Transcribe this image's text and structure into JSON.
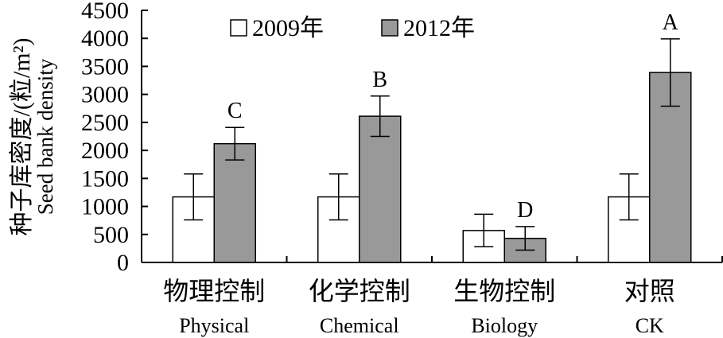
{
  "chart_data": {
    "type": "bar",
    "ylabel_cn": "种子库密度/(粒/m²)",
    "ylabel_en": "Seed bank density",
    "ylim": [
      0,
      4500
    ],
    "yticks": [
      "0",
      "500",
      "1000",
      "1500",
      "2000",
      "2500",
      "3000",
      "3500",
      "4000",
      "4500"
    ],
    "categories": [
      {
        "cn": "物理控制",
        "en": "Physical"
      },
      {
        "cn": "化学控制",
        "en": "Chemical"
      },
      {
        "cn": "生物控制",
        "en": "Biology"
      },
      {
        "cn": "对照",
        "en": "CK"
      }
    ],
    "series": [
      {
        "name": "2009年",
        "color": "#ffffff",
        "values": [
          1170,
          1170,
          570,
          1170
        ],
        "error": [
          410,
          410,
          290,
          410
        ]
      },
      {
        "name": "2012年",
        "color": "#999999",
        "values": [
          2120,
          2610,
          430,
          3390
        ],
        "error": [
          290,
          360,
          210,
          600
        ]
      }
    ],
    "significance_letters": [
      "C",
      "B",
      "D",
      "A"
    ],
    "grid": false,
    "legend_position": "top"
  }
}
